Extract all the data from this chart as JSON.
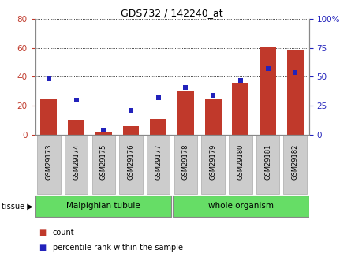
{
  "title": "GDS732 / 142240_at",
  "samples": [
    "GSM29173",
    "GSM29174",
    "GSM29175",
    "GSM29176",
    "GSM29177",
    "GSM29178",
    "GSM29179",
    "GSM29180",
    "GSM29181",
    "GSM29182"
  ],
  "counts": [
    25,
    10,
    2,
    6,
    11,
    30,
    25,
    36,
    61,
    58
  ],
  "percentiles": [
    48,
    30,
    4,
    21,
    32,
    41,
    34,
    47,
    57,
    54
  ],
  "left_ylim": [
    0,
    80
  ],
  "right_ylim": [
    0,
    100
  ],
  "left_yticks": [
    0,
    20,
    40,
    60,
    80
  ],
  "right_yticks": [
    0,
    25,
    50,
    75,
    100
  ],
  "right_yticklabels": [
    "0",
    "25",
    "50",
    "75",
    "100%"
  ],
  "bar_color": "#c0392b",
  "dot_color": "#2222bb",
  "tissue_groups": [
    {
      "label": "Malpighian tubule",
      "start": 0,
      "end": 5,
      "color": "#66dd66"
    },
    {
      "label": "whole organism",
      "start": 5,
      "end": 10,
      "color": "#66dd66"
    }
  ],
  "tick_label_bg": "#cccccc",
  "plot_bg": "#ffffff",
  "legend_count_color": "#c0392b",
  "legend_pct_color": "#2222bb",
  "border_color": "#888888"
}
